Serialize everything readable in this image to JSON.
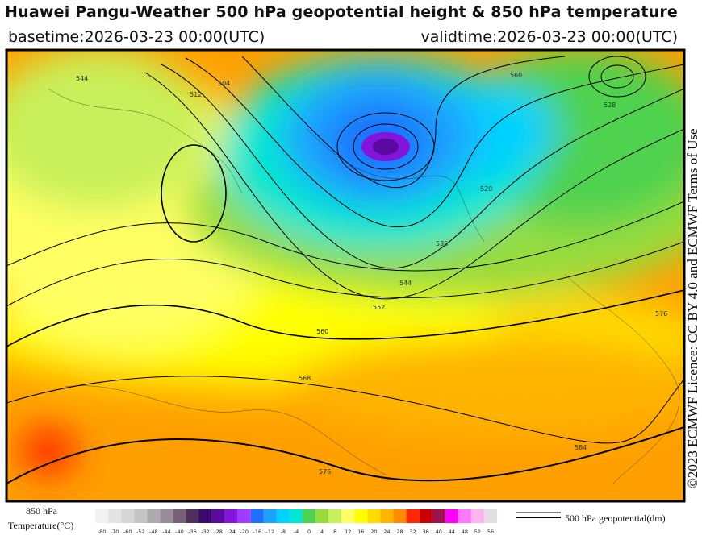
{
  "header": {
    "title": "Huawei Pangu-Weather 500 hPa geopotential height & 850 hPa temperature",
    "basetime": "basetime:2026-03-23 00:00(UTC)",
    "validtime": "validtime:2026-03-23 00:00(UTC)"
  },
  "license": "©2023 ECMWF Licence: CC BY 4.0 and ECMWF Terms of Use",
  "map": {
    "contour_labels": [
      "560",
      "568",
      "576",
      "552",
      "544",
      "536",
      "504",
      "512",
      "520",
      "528",
      "584",
      "576",
      "560",
      "544"
    ]
  },
  "legend": {
    "label_line1": "850 hPa",
    "label_line2": "Temperature(°C)",
    "ticks": [
      -80,
      -70,
      -60,
      -52,
      -48,
      -44,
      -40,
      -36,
      -32,
      -28,
      -24,
      -20,
      -16,
      -12,
      -8,
      -4,
      0,
      4,
      8,
      12,
      16,
      20,
      24,
      28,
      32,
      36,
      40,
      44,
      48,
      52,
      56
    ],
    "colors": [
      "#f2f2f2",
      "#e4e4e4",
      "#d6d6d6",
      "#c4c4c4",
      "#b0aab0",
      "#988c98",
      "#786078",
      "#50305a",
      "#3c0a6e",
      "#5a0aa0",
      "#8214dc",
      "#a03cff",
      "#1e6eff",
      "#1ea0ff",
      "#00d2ff",
      "#00e6d2",
      "#50d250",
      "#96dc3c",
      "#c8f05a",
      "#ffff64",
      "#ffff00",
      "#ffdc00",
      "#ffb400",
      "#ff8c00",
      "#ff2800",
      "#c80000",
      "#9b1450",
      "#ff00ff",
      "#ff78ff",
      "#ffb4f0",
      "#e6dce6"
    ],
    "contour_label": "500 hPa geopotential(dm)"
  }
}
